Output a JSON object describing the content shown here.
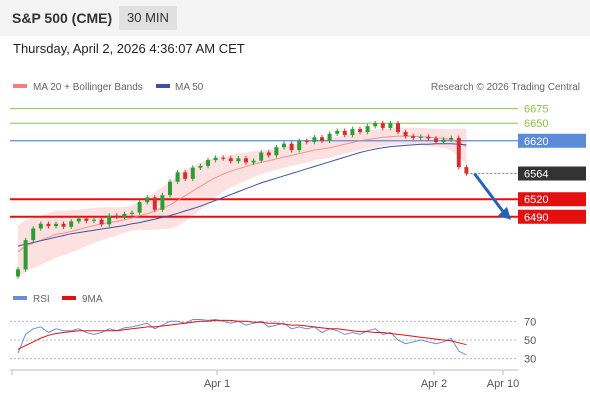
{
  "header": {
    "title": "S&P 500 (CME)",
    "timeframe": "30 MIN",
    "timestamp": "Thursday, April 2, 2026 4:36:07 AM CET"
  },
  "legend": {
    "ma20": "MA 20 + Bollinger Bands",
    "ma50": "MA 50",
    "rsi": "RSI",
    "ma9": "9MA",
    "credit": "Research © 2026 Trading Central"
  },
  "colors": {
    "ma20": "#f08080",
    "ma50": "#3f51a5",
    "bollinger_fill": "#fde0e0",
    "up_candle": "#2e9c34",
    "down_candle": "#d32f2f",
    "resistance": "#8bc34a",
    "pivot": "#5b8bd9",
    "support": "#e41010",
    "last_price": "#333333",
    "rsi": "#6a8fd8",
    "rsi_ma": "#e41010",
    "arrow": "#2563b8"
  },
  "chart_data": [
    {
      "type": "candlestick",
      "title": "S&P 500 (CME)",
      "x_ticks": [
        "Apr 1",
        "Apr 2",
        "Apr 10"
      ],
      "ylim": [
        6375,
        6700
      ],
      "levels": [
        {
          "value": 6675,
          "label": "6675",
          "kind": "resistance"
        },
        {
          "value": 6650,
          "label": "6650",
          "kind": "resistance"
        },
        {
          "value": 6620,
          "label": "6620",
          "kind": "pivot"
        },
        {
          "value": 6564,
          "label": "6564",
          "kind": "last"
        },
        {
          "value": 6520,
          "label": "6520",
          "kind": "support"
        },
        {
          "value": 6490,
          "label": "6490",
          "kind": "support"
        }
      ],
      "close_series": [
        6400,
        6450,
        6470,
        6478,
        6474,
        6478,
        6473,
        6482,
        6487,
        6483,
        6485,
        6477,
        6492,
        6490,
        6495,
        6497,
        6515,
        6523,
        6502,
        6527,
        6550,
        6566,
        6555,
        6574,
        6577,
        6587,
        6591,
        6590,
        6585,
        6590,
        6583,
        6586,
        6600,
        6595,
        6609,
        6615,
        6604,
        6620,
        6618,
        6626,
        6620,
        6632,
        6637,
        6630,
        6640,
        6635,
        6645,
        6650,
        6642,
        6650,
        6635,
        6628,
        6625,
        6627,
        6624,
        6618,
        6622,
        6625,
        6575,
        6564
      ],
      "ma20_series": [
        6430,
        6440,
        6445,
        6450,
        6455,
        6460,
        6462,
        6465,
        6468,
        6472,
        6475,
        6478,
        6480,
        6482,
        6485,
        6488,
        6492,
        6495,
        6500,
        6505,
        6510,
        6518,
        6526,
        6534,
        6542,
        6550,
        6557,
        6563,
        6568,
        6572,
        6576,
        6580,
        6583,
        6586,
        6589,
        6592,
        6595,
        6598,
        6601,
        6604,
        6606,
        6608,
        6611,
        6614,
        6617,
        6620,
        6622,
        6624,
        6626,
        6627,
        6628,
        6628,
        6628,
        6627,
        6626,
        6625,
        6624,
        6622,
        6617,
        6610
      ],
      "ma50_series": [
        6440,
        6443,
        6446,
        6449,
        6452,
        6455,
        6458,
        6461,
        6463,
        6465,
        6467,
        6469,
        6471,
        6473,
        6475,
        6478,
        6480,
        6483,
        6486,
        6489,
        6492,
        6496,
        6500,
        6504,
        6508,
        6513,
        6518,
        6523,
        6528,
        6533,
        6538,
        6543,
        6548,
        6552,
        6556,
        6560,
        6564,
        6568,
        6572,
        6576,
        6580,
        6584,
        6588,
        6592,
        6596,
        6600,
        6603,
        6606,
        6608,
        6610,
        6611,
        6612,
        6613,
        6614,
        6614,
        6615,
        6615,
        6615,
        6614,
        6613
      ],
      "bb_half_width_series": [
        45,
        44,
        43,
        42,
        41,
        40,
        38,
        36,
        34,
        32,
        30,
        28,
        26,
        24,
        22,
        22,
        24,
        28,
        32,
        36,
        40,
        44,
        44,
        42,
        40,
        38,
        34,
        30,
        28,
        26,
        24,
        22,
        20,
        19,
        18,
        18,
        18,
        18,
        18,
        17,
        17,
        17,
        16,
        16,
        16,
        16,
        16,
        15,
        15,
        14,
        14,
        14,
        14,
        15,
        15,
        16,
        16,
        18,
        24,
        30
      ],
      "forecast_arrow": {
        "from": 6564,
        "to": 6490
      }
    },
    {
      "type": "line",
      "title": "RSI",
      "y_ticks": [
        70,
        50,
        30
      ],
      "ylim": [
        20,
        80
      ],
      "series": [
        {
          "name": "RSI",
          "values": [
            36,
            56,
            62,
            64,
            58,
            62,
            60,
            60,
            62,
            58,
            56,
            58,
            62,
            60,
            63,
            64,
            66,
            68,
            62,
            66,
            70,
            70,
            68,
            72,
            72,
            71,
            72,
            70,
            68,
            70,
            66,
            68,
            70,
            64,
            66,
            68,
            62,
            64,
            62,
            64,
            58,
            62,
            60,
            56,
            58,
            56,
            60,
            62,
            56,
            58,
            50,
            46,
            48,
            50,
            48,
            46,
            48,
            52,
            38,
            34
          ]
        },
        {
          "name": "9MA",
          "values": [
            40,
            44,
            48,
            52,
            55,
            57,
            58,
            59,
            60,
            60,
            60,
            60,
            60,
            60,
            61,
            62,
            63,
            64,
            64,
            65,
            66,
            67,
            68,
            69,
            70,
            70,
            71,
            71,
            71,
            70,
            70,
            69,
            69,
            68,
            68,
            67,
            66,
            66,
            65,
            64,
            63,
            62,
            62,
            61,
            60,
            59,
            59,
            58,
            58,
            57,
            56,
            55,
            54,
            53,
            52,
            51,
            50,
            49,
            47,
            45
          ]
        }
      ]
    }
  ]
}
